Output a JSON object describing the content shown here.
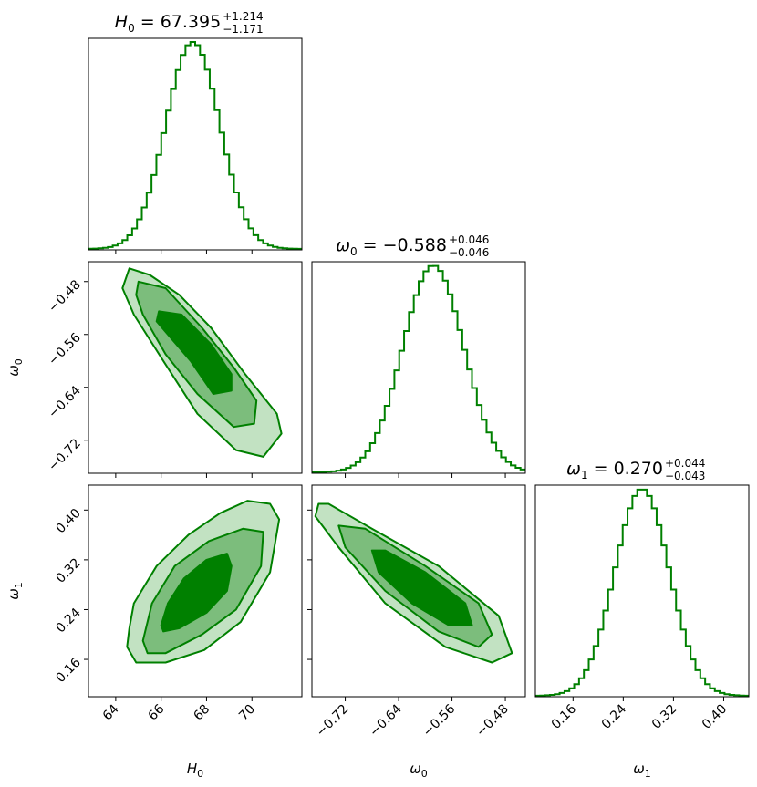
{
  "chart_data": {
    "type": "corner",
    "color": "#008000",
    "parameters": [
      {
        "label": "H₀",
        "label_main": "H",
        "label_sub": "0",
        "title_prefix": "H",
        "title_sub": "0",
        "title_value": " = 67.395",
        "title_upper": "+1.214",
        "title_lower": "−1.171",
        "median": 67.395,
        "err_plus": 1.214,
        "err_minus": 1.171,
        "range": [
          62.8,
          72.2
        ],
        "ticks": [
          64,
          66,
          68,
          70
        ],
        "tick_labels": [
          "64",
          "66",
          "68",
          "70"
        ]
      },
      {
        "label": "ω₀",
        "label_main": "ω",
        "label_sub": "0",
        "title_prefix": "ω",
        "title_sub": "0",
        "title_value": " = −0.588",
        "title_upper": "+0.046",
        "title_lower": "−0.046",
        "median": -0.588,
        "err_plus": 0.046,
        "err_minus": 0.046,
        "range": [
          -0.77,
          -0.45
        ],
        "ticks": [
          -0.72,
          -0.64,
          -0.56,
          -0.48
        ],
        "tick_labels": [
          "−0.72",
          "−0.64",
          "−0.56",
          "−0.48"
        ]
      },
      {
        "label": "ω₁",
        "label_main": "ω",
        "label_sub": "1",
        "title_prefix": "ω",
        "title_sub": "1",
        "title_value": " = 0.270",
        "title_upper": "+0.044",
        "title_lower": "−0.043",
        "median": 0.27,
        "err_plus": 0.044,
        "err_minus": 0.043,
        "range": [
          0.1,
          0.44
        ],
        "ticks": [
          0.16,
          0.24,
          0.32,
          0.4
        ],
        "tick_labels": [
          "0.16",
          "0.24",
          "0.32",
          "0.40"
        ]
      }
    ],
    "contours": [
      {
        "x_param": 0,
        "y_param": 1,
        "levels": [
          [
            [
              64.6,
              -0.46
            ],
            [
              65.5,
              -0.47
            ],
            [
              66.8,
              -0.5
            ],
            [
              68.2,
              -0.55
            ],
            [
              69.7,
              -0.62
            ],
            [
              71.1,
              -0.68
            ],
            [
              71.3,
              -0.71
            ],
            [
              70.5,
              -0.745
            ],
            [
              69.3,
              -0.735
            ],
            [
              67.6,
              -0.68
            ],
            [
              66.1,
              -0.6
            ],
            [
              64.8,
              -0.53
            ],
            [
              64.3,
              -0.49
            ]
          ],
          [
            [
              65.0,
              -0.48
            ],
            [
              66.2,
              -0.49
            ],
            [
              67.8,
              -0.55
            ],
            [
              69.2,
              -0.61
            ],
            [
              70.2,
              -0.66
            ],
            [
              70.1,
              -0.695
            ],
            [
              69.2,
              -0.7
            ],
            [
              67.6,
              -0.65
            ],
            [
              66.2,
              -0.59
            ],
            [
              65.2,
              -0.53
            ],
            [
              64.9,
              -0.5
            ]
          ],
          [
            [
              65.9,
              -0.525
            ],
            [
              66.9,
              -0.53
            ],
            [
              68.2,
              -0.575
            ],
            [
              69.1,
              -0.62
            ],
            [
              69.1,
              -0.645
            ],
            [
              68.3,
              -0.65
            ],
            [
              67.3,
              -0.6
            ],
            [
              66.3,
              -0.56
            ],
            [
              65.8,
              -0.54
            ]
          ]
        ]
      },
      {
        "x_param": 0,
        "y_param": 2,
        "levels": [
          [
            [
              64.6,
              0.21
            ],
            [
              64.8,
              0.25
            ],
            [
              65.8,
              0.31
            ],
            [
              67.2,
              0.36
            ],
            [
              68.6,
              0.395
            ],
            [
              69.8,
              0.415
            ],
            [
              70.8,
              0.41
            ],
            [
              71.2,
              0.385
            ],
            [
              70.8,
              0.3
            ],
            [
              69.5,
              0.22
            ],
            [
              67.9,
              0.175
            ],
            [
              66.2,
              0.155
            ],
            [
              64.9,
              0.155
            ],
            [
              64.5,
              0.18
            ]
          ],
          [
            [
              65.2,
              0.19
            ],
            [
              65.6,
              0.25
            ],
            [
              66.6,
              0.31
            ],
            [
              68.1,
              0.35
            ],
            [
              69.6,
              0.37
            ],
            [
              70.5,
              0.365
            ],
            [
              70.4,
              0.31
            ],
            [
              69.3,
              0.24
            ],
            [
              67.8,
              0.2
            ],
            [
              66.2,
              0.17
            ],
            [
              65.4,
              0.17
            ]
          ],
          [
            [
              66.0,
              0.215
            ],
            [
              66.3,
              0.25
            ],
            [
              67.0,
              0.29
            ],
            [
              68.0,
              0.32
            ],
            [
              68.9,
              0.33
            ],
            [
              69.1,
              0.31
            ],
            [
              68.9,
              0.27
            ],
            [
              68.0,
              0.235
            ],
            [
              66.8,
              0.21
            ],
            [
              66.1,
              0.205
            ]
          ]
        ]
      },
      {
        "x_param": 1,
        "y_param": 2,
        "levels": [
          [
            [
              -0.76,
              0.41
            ],
            [
              -0.745,
              0.41
            ],
            [
              -0.68,
              0.37
            ],
            [
              -0.58,
              0.31
            ],
            [
              -0.49,
              0.23
            ],
            [
              -0.47,
              0.17
            ],
            [
              -0.5,
              0.155
            ],
            [
              -0.57,
              0.18
            ],
            [
              -0.66,
              0.25
            ],
            [
              -0.73,
              0.34
            ],
            [
              -0.765,
              0.39
            ]
          ],
          [
            [
              -0.73,
              0.375
            ],
            [
              -0.69,
              0.37
            ],
            [
              -0.6,
              0.31
            ],
            [
              -0.52,
              0.25
            ],
            [
              -0.5,
              0.2
            ],
            [
              -0.52,
              0.18
            ],
            [
              -0.58,
              0.205
            ],
            [
              -0.66,
              0.27
            ],
            [
              -0.72,
              0.34
            ]
          ],
          [
            [
              -0.68,
              0.335
            ],
            [
              -0.66,
              0.335
            ],
            [
              -0.6,
              0.3
            ],
            [
              -0.54,
              0.25
            ],
            [
              -0.53,
              0.215
            ],
            [
              -0.565,
              0.215
            ],
            [
              -0.62,
              0.25
            ],
            [
              -0.67,
              0.3
            ]
          ]
        ]
      }
    ]
  }
}
